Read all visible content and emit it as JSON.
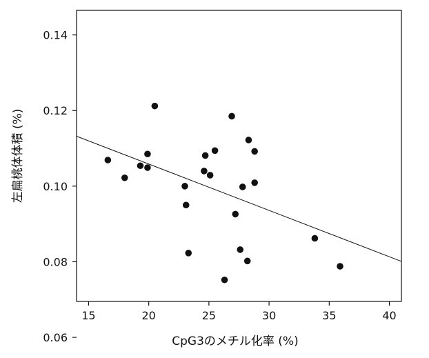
{
  "chart_data": {
    "type": "scatter",
    "xlabel": "CpG3のメチル化率 (%)",
    "ylabel": "左扁桃体体積 (%)",
    "xlim": [
      14,
      41
    ],
    "ylim": [
      0.0695,
      0.1465
    ],
    "x_ticks": [
      15,
      20,
      25,
      30,
      35,
      40
    ],
    "y_ticks": [
      0.06,
      0.08,
      0.1,
      0.12,
      0.14
    ],
    "x_tick_labels": [
      "15",
      "20",
      "25",
      "30",
      "35",
      "40"
    ],
    "y_tick_labels": [
      "0.06",
      "0.08",
      "0.10",
      "0.12",
      "0.14"
    ],
    "grid": false,
    "points": [
      {
        "x": 16.6,
        "y": 0.1069
      },
      {
        "x": 18.0,
        "y": 0.1022
      },
      {
        "x": 19.3,
        "y": 0.1054
      },
      {
        "x": 19.9,
        "y": 0.1085
      },
      {
        "x": 19.9,
        "y": 0.1049
      },
      {
        "x": 20.5,
        "y": 0.1212
      },
      {
        "x": 23.0,
        "y": 0.1
      },
      {
        "x": 23.1,
        "y": 0.095
      },
      {
        "x": 23.3,
        "y": 0.0823
      },
      {
        "x": 24.6,
        "y": 0.104
      },
      {
        "x": 24.7,
        "y": 0.1081
      },
      {
        "x": 25.1,
        "y": 0.1029
      },
      {
        "x": 25.5,
        "y": 0.1094
      },
      {
        "x": 26.3,
        "y": 0.0752
      },
      {
        "x": 26.9,
        "y": 0.1185
      },
      {
        "x": 27.2,
        "y": 0.0926
      },
      {
        "x": 27.6,
        "y": 0.0832
      },
      {
        "x": 27.8,
        "y": 0.0998
      },
      {
        "x": 28.2,
        "y": 0.0802
      },
      {
        "x": 28.3,
        "y": 0.1122
      },
      {
        "x": 28.8,
        "y": 0.1009
      },
      {
        "x": 28.8,
        "y": 0.1092
      },
      {
        "x": 33.8,
        "y": 0.0862
      },
      {
        "x": 35.9,
        "y": 0.0788
      }
    ],
    "regression_line": {
      "x": [
        14,
        41
      ],
      "y": [
        0.1132,
        0.0801
      ]
    }
  }
}
